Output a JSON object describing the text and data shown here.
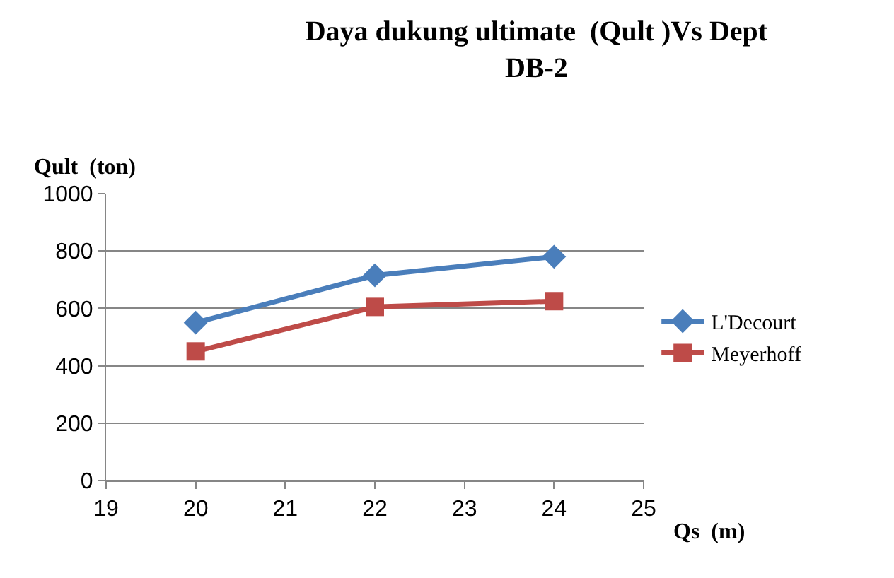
{
  "chart_data": {
    "type": "line",
    "title": "Daya dukung ultimate  (Qult )Vs Dept\nDB-2",
    "xlabel": "Qs  (m)",
    "ylabel": "Qult  (ton)",
    "x": [
      20,
      22,
      24
    ],
    "series": [
      {
        "name": "L'Decourt",
        "color": "#4a7ebb",
        "values": [
          550,
          715,
          780
        ],
        "marker": "diamond"
      },
      {
        "name": "Meyerhoff",
        "color": "#be4b48",
        "values": [
          450,
          605,
          625
        ],
        "marker": "square"
      }
    ],
    "xlim": [
      19,
      25
    ],
    "xticks": [
      19,
      20,
      21,
      22,
      23,
      24,
      25
    ],
    "ylim": [
      0,
      1000
    ],
    "yticks": [
      0,
      200,
      400,
      600,
      800,
      1000
    ],
    "grid": "y",
    "legend": "right",
    "line_style": "solid"
  }
}
